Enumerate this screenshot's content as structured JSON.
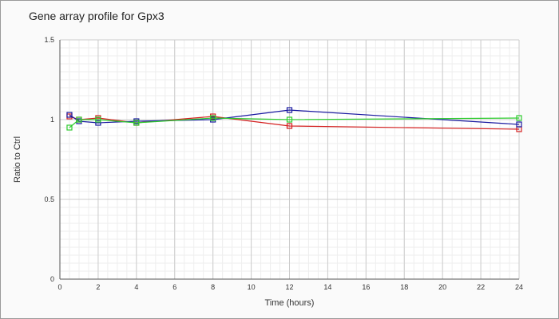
{
  "chart_data": {
    "type": "line",
    "title": "Gene array profile for Gpx3",
    "xlabel": "Time (hours)",
    "ylabel": "Ratio to Ctrl",
    "xlim": [
      0,
      24
    ],
    "ylim": [
      0,
      1.5
    ],
    "x_ticks": [
      "0",
      "2",
      "4",
      "6",
      "8",
      "10",
      "12",
      "14",
      "16",
      "18",
      "20",
      "22",
      "24"
    ],
    "y_ticks": [
      "0",
      "0.5",
      "1",
      "1.5"
    ],
    "grid": true,
    "legend": "none",
    "x": [
      0.5,
      1,
      2,
      4,
      8,
      12,
      24
    ],
    "series": [
      {
        "color": "#d42020",
        "values": [
          1.02,
          1.0,
          1.01,
          0.98,
          1.02,
          0.96,
          0.94
        ]
      },
      {
        "color": "#1a1aa0",
        "values": [
          1.03,
          0.99,
          0.98,
          0.99,
          1.0,
          1.06,
          0.97
        ]
      },
      {
        "color": "#2ecc2e",
        "values": [
          0.95,
          1.0,
          1.0,
          0.98,
          1.01,
          1.0,
          1.01
        ]
      }
    ]
  }
}
